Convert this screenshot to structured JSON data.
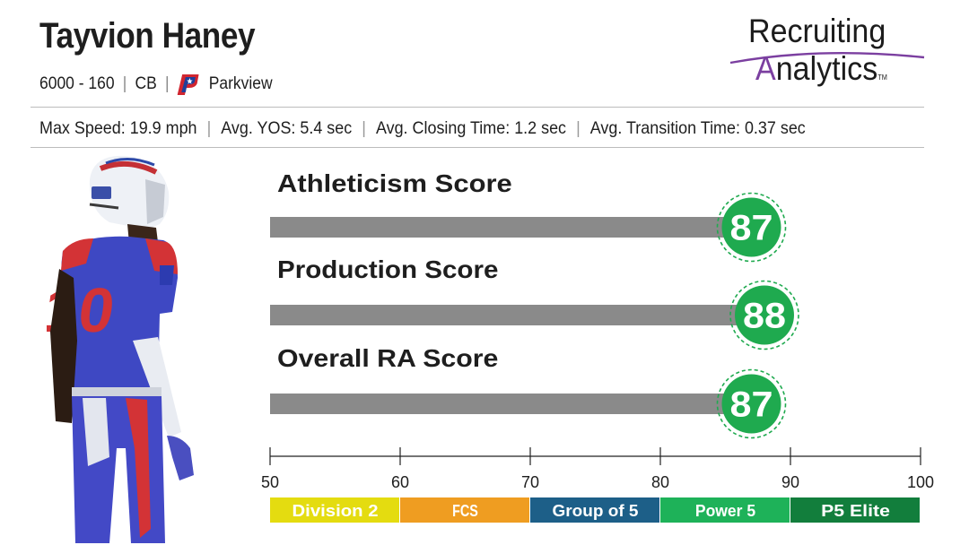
{
  "player": {
    "name": "Tayvion Haney",
    "measurables": "6000 - 160",
    "position": "CB",
    "school": "Parkview"
  },
  "brand": {
    "line1": "Recruiting",
    "line2_initial": "A",
    "line2_rest": "nalytics",
    "tm": "TM",
    "accent_color": "#7b3fa0"
  },
  "stats": [
    {
      "label": "Max Speed: 19.9 mph"
    },
    {
      "label": "Avg. YOS: 5.4 sec"
    },
    {
      "label": "Avg. Closing Time: 1.2 sec"
    },
    {
      "label": "Avg. Transition Time: 0.37 sec"
    }
  ],
  "chart_data": {
    "type": "bar",
    "orientation": "horizontal",
    "categories": [
      "Athleticism Score",
      "Production Score",
      "Overall RA Score"
    ],
    "values": [
      87,
      88,
      87
    ],
    "xlim": [
      50,
      100
    ],
    "ticks": [
      50,
      60,
      70,
      80,
      90,
      100
    ],
    "bar_color": "#8a8a8a",
    "badge_color": "#1faa4f",
    "tiers": [
      {
        "label": "Division 2",
        "from": 50,
        "to": 60,
        "color": "#e4dc10"
      },
      {
        "label": "FCS",
        "from": 60,
        "to": 70,
        "color": "#ef9d21"
      },
      {
        "label": "Group of 5",
        "from": 70,
        "to": 80,
        "color": "#1d5f88"
      },
      {
        "label": "Power 5",
        "from": 80,
        "to": 90,
        "color": "#1eb259"
      },
      {
        "label": "P5 Elite",
        "from": 90,
        "to": 100,
        "color": "#127e3c"
      }
    ]
  }
}
